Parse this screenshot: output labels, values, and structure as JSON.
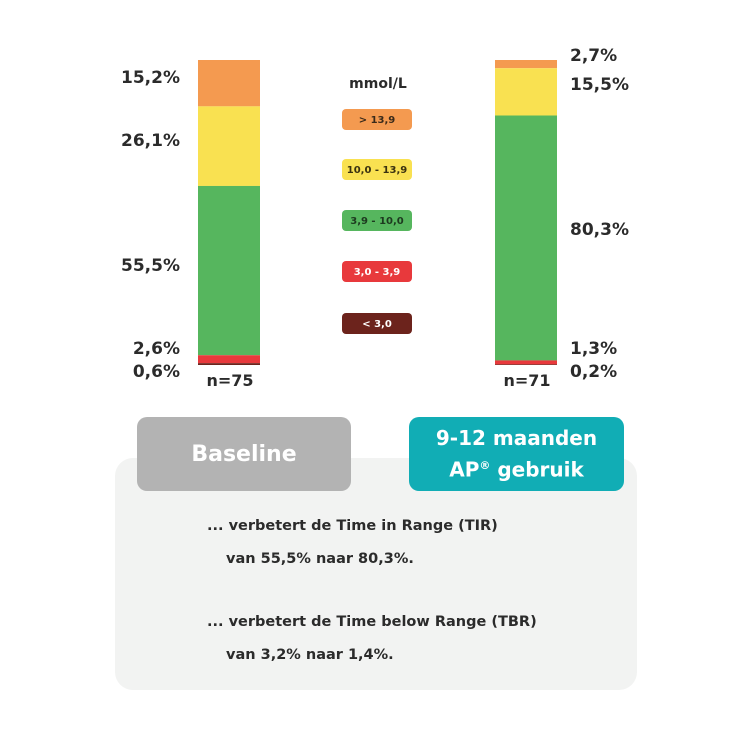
{
  "chart_data": {
    "type": "stacked-bar",
    "unit": "%",
    "legend_title": "mmol/L",
    "ranges": [
      {
        "label": "> 13,9",
        "color": "#f49a50",
        "text_color": "#3a2a1a"
      },
      {
        "label": "10,0 - 13,9",
        "color": "#f9e151",
        "text_color": "#3a3210"
      },
      {
        "label": "3,9 - 10,0",
        "color": "#56b65e",
        "text_color": "#1d3a1f"
      },
      {
        "label": "3,0 - 3,9",
        "color": "#e8393c",
        "text_color": "#ffffff"
      },
      {
        "label": "< 3,0",
        "color": "#6c231c",
        "text_color": "#ffffff"
      }
    ],
    "bars": [
      {
        "n_label": "n=75",
        "values": [
          15.2,
          26.1,
          55.5,
          2.6,
          0.6
        ],
        "labels": [
          "15,2%",
          "26,1%",
          "55,5%",
          "2,6%",
          "0,6%"
        ]
      },
      {
        "n_label": "n=71",
        "values": [
          2.7,
          15.5,
          80.3,
          1.3,
          0.2
        ],
        "labels": [
          "2,7%",
          "15,5%",
          "80,3%",
          "1,3%",
          "0,2%"
        ]
      }
    ]
  },
  "buttons": {
    "baseline": "Baseline",
    "ap_line1": "9-12 maanden",
    "ap_line2_prefix": "AP",
    "ap_line2_sup": "®",
    "ap_line2_suffix": " gebruik"
  },
  "notes": [
    {
      "line1": "... verbetert de Time in Range (TIR)",
      "line2": "van 55,5% naar 80,3%."
    },
    {
      "line1": "... verbetert de Time below Range (TBR)",
      "line2": "van 3,2% naar 1,4%."
    }
  ]
}
